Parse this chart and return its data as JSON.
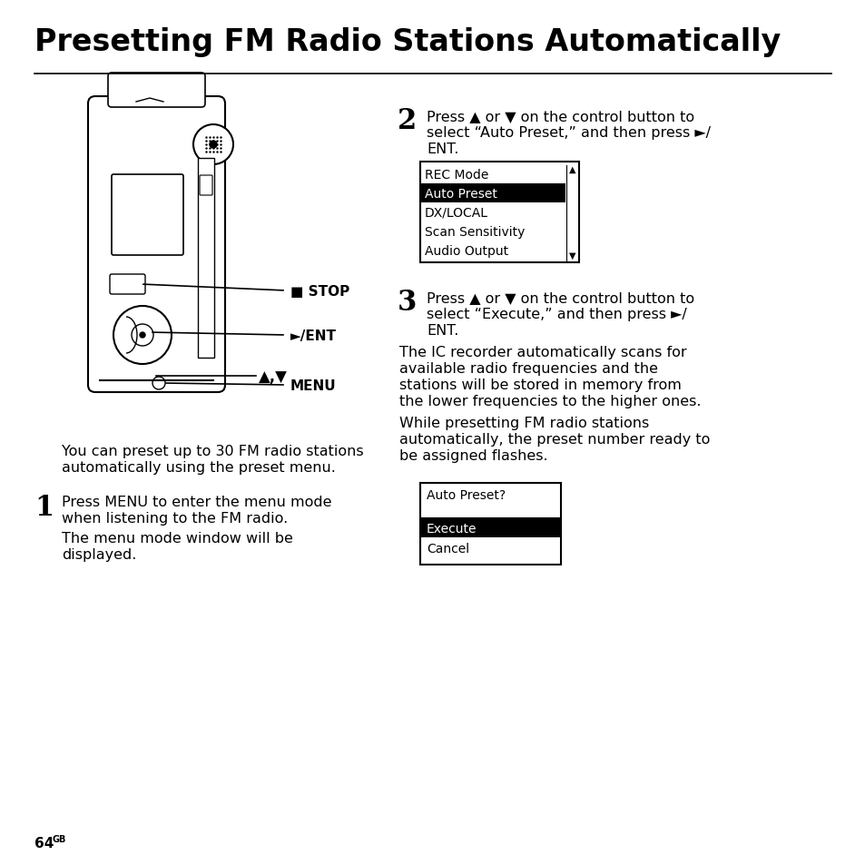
{
  "title": "Presetting FM Radio Stations Automatically",
  "title_fontsize": 24,
  "body_fontsize": 11.5,
  "small_fontsize": 10,
  "page_number": "64",
  "background_color": "#ffffff",
  "text_color": "#000000",
  "menu1_items": [
    "REC Mode",
    "Auto Preset",
    "DX/LOCAL",
    "Scan Sensitivity",
    "Audio Output"
  ],
  "menu1_selected": 1,
  "label_stop": "■ STOP",
  "label_ent": "►/ENT",
  "label_menu": "MENU",
  "label_arrows": "▲,▼",
  "intro_line1": "You can preset up to 30 FM radio stations",
  "intro_line2": "automatically using the preset menu.",
  "step1_number": "1",
  "step1_text_line1": "Press MENU to enter the menu mode",
  "step1_text_line2": "when listening to the FM radio.",
  "step1_sub_line1": "The menu mode window will be",
  "step1_sub_line2": "displayed.",
  "step2_number": "2",
  "step2_text_line1": "Press ▲ or ▼ on the control button to",
  "step2_text_line2": "select “Auto Preset,” and then press ►/",
  "step2_text_line3": "ENT.",
  "step3_number": "3",
  "step3_text_line1": "Press ▲ or ▼ on the control button to",
  "step3_text_line2": "select “Execute,” and then press ►/",
  "step3_text_line3": "ENT.",
  "step3_sub1_line1": "The IC recorder automatically scans for",
  "step3_sub1_line2": "available radio frequencies and the",
  "step3_sub1_line3": "stations will be stored in memory from",
  "step3_sub1_line4": "the lower frequencies to the higher ones.",
  "step3_sub2_line1": "While presetting FM radio stations",
  "step3_sub2_line2": "automatically, the preset number ready to",
  "step3_sub2_line3": "be assigned flashes.",
  "menu2_title": "Auto Preset?",
  "menu2_exec": "Execute",
  "menu2_cancel": "Cancel"
}
